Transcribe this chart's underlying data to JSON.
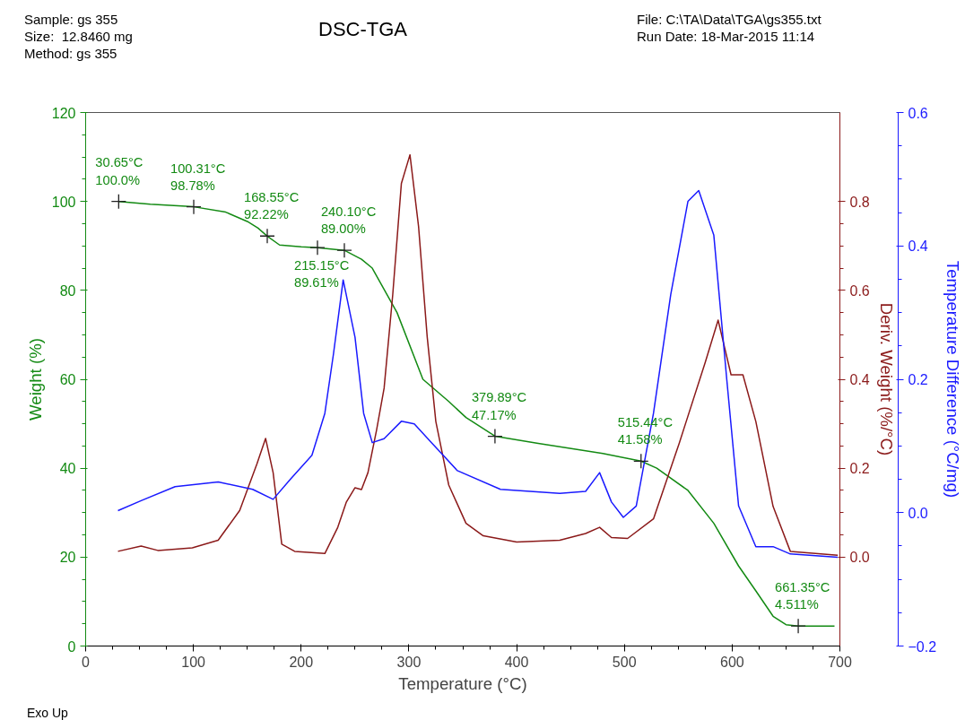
{
  "chart_data": {
    "type": "line",
    "title": "DSC-TGA",
    "xlabel": "Temperature (°C)",
    "ylabel": "Weight (%)",
    "y2label": "Deriv. Weight (%/°C)",
    "y3label": "Temperature Difference (°C/mg)",
    "xlim": [
      0,
      700
    ],
    "xticks": [
      0,
      100,
      200,
      300,
      400,
      500,
      600,
      700
    ],
    "ylim": [
      0,
      120
    ],
    "yticks": [
      0,
      20,
      40,
      60,
      80,
      100,
      120
    ],
    "y2lim": [
      -0.2,
      1.0
    ],
    "y2ticks": [
      {
        "value": 0.0,
        "label": "0.0"
      },
      0.2,
      0.4,
      0.6,
      0.8
    ],
    "y3lim": [
      -0.2,
      0.6
    ],
    "y3ticks": [
      -0.2,
      {
        "value": 0.0,
        "label": "0.0"
      },
      0.2,
      0.4,
      0.6
    ],
    "grid": false,
    "series": [
      {
        "color": "#138a13",
        "x": [
          30.65,
          60,
          100.31,
          130,
          150,
          160,
          168.55,
          180,
          200,
          215.15,
          240.1,
          256,
          266,
          289,
          313,
          337,
          353,
          379.89,
          420,
          480,
          515.44,
          530,
          559,
          583,
          606,
          622,
          638,
          650,
          661.35,
          695
        ],
        "values": [
          100.0,
          99.4,
          98.8,
          97.6,
          95.5,
          94.0,
          92.2,
          90.2,
          89.8,
          89.6,
          89.0,
          87.0,
          85.0,
          75.0,
          60.0,
          55.0,
          51.4,
          47.2,
          45.6,
          43.3,
          41.6,
          40.0,
          35.0,
          27.6,
          18.0,
          12.4,
          6.7,
          4.8,
          4.5,
          4.5
        ]
      },
      {
        "color": "#8b1a1a",
        "axis": "y2",
        "x": [
          30,
          51.5,
          67,
          99,
          123,
          143,
          159,
          167,
          174,
          182,
          194,
          222,
          234,
          242,
          250,
          256,
          262,
          270,
          277,
          285,
          293,
          301,
          309,
          317,
          325,
          337,
          353,
          369,
          400,
          440,
          464,
          477,
          488,
          503,
          527,
          551,
          575,
          587,
          599,
          610,
          622,
          638,
          654,
          698
        ],
        "values": [
          0.013,
          0.025,
          0.015,
          0.021,
          0.038,
          0.105,
          0.21,
          0.267,
          0.19,
          0.029,
          0.013,
          0.008,
          0.067,
          0.124,
          0.156,
          0.152,
          0.19,
          0.286,
          0.38,
          0.59,
          0.84,
          0.905,
          0.743,
          0.495,
          0.305,
          0.162,
          0.076,
          0.048,
          0.034,
          0.038,
          0.053,
          0.067,
          0.044,
          0.042,
          0.086,
          0.257,
          0.438,
          0.533,
          0.41,
          0.41,
          0.305,
          0.114,
          0.013,
          0.004
        ]
      },
      {
        "color": "#1a1aff",
        "axis": "y3",
        "x": [
          30,
          51.5,
          83,
          123,
          155,
          174,
          190,
          210,
          222,
          230,
          239,
          250,
          258,
          266,
          277,
          293,
          305,
          321,
          345,
          385,
          440,
          464,
          477,
          488,
          499,
          511,
          527,
          543,
          559,
          569,
          583,
          595,
          606,
          622,
          638,
          654,
          698
        ],
        "values": [
          0.003,
          0.018,
          0.039,
          0.046,
          0.035,
          0.02,
          0.05,
          0.086,
          0.149,
          0.238,
          0.349,
          0.263,
          0.149,
          0.105,
          0.111,
          0.137,
          0.133,
          0.105,
          0.063,
          0.035,
          0.029,
          0.032,
          0.06,
          0.016,
          -0.007,
          0.01,
          0.149,
          0.327,
          0.467,
          0.483,
          0.416,
          0.2,
          0.01,
          -0.051,
          -0.051,
          -0.062,
          -0.067
        ]
      }
    ],
    "annotations": [
      "Sample: gs 355",
      "Size:  12.8460 mg",
      "Method: gs 355",
      "File: C:\\TA\\Data\\TGA\\gs355.txt",
      "Run Date: 18-Mar-2015 11:14",
      {
        "text": "30.65°C\n100.0%",
        "x": 30.65,
        "y": 100.0
      },
      {
        "text": "100.31°C\n98.78%",
        "x": 100.31,
        "y": 98.78
      },
      {
        "text": "168.55°C\n92.22%",
        "x": 168.55,
        "y": 92.22
      },
      {
        "text": "215.15°C\n89.61%",
        "x": 215.15,
        "y": 89.61
      },
      {
        "text": "240.10°C\n89.00%",
        "x": 240.1,
        "y": 89.0
      },
      {
        "text": "379.89°C\n47.17%",
        "x": 379.89,
        "y": 47.17
      },
      {
        "text": "515.44°C\n41.58%",
        "x": 515.44,
        "y": 41.58
      },
      {
        "text": "661.35°C\n4.511%",
        "x": 661.35,
        "y": 4.511
      },
      "Exo Up"
    ]
  }
}
